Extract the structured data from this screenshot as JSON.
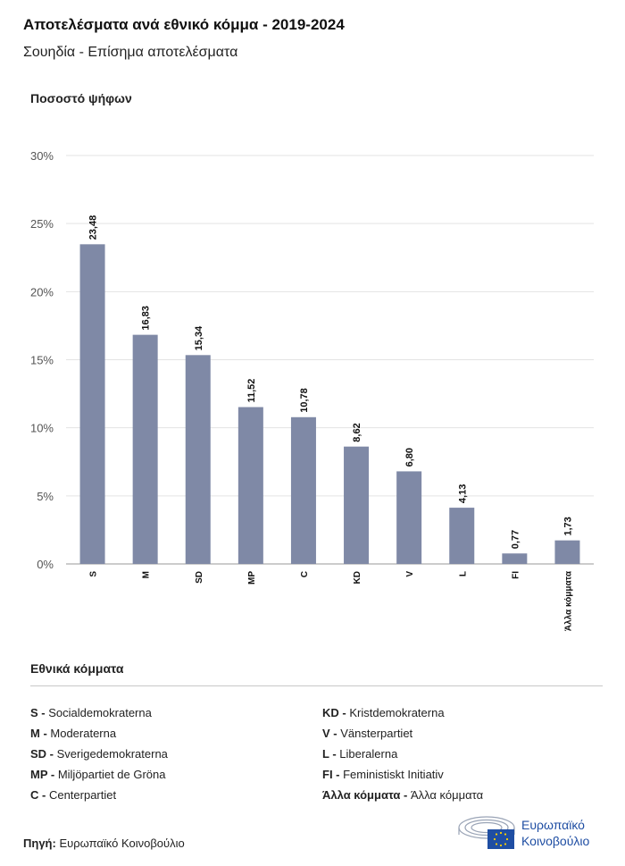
{
  "title": "Αποτελέσματα ανά εθνικό κόμμα - 2019-2024",
  "subtitle": "Σουηδία - Επίσημα αποτελέσματα",
  "chart_data": {
    "type": "bar",
    "title": "Αποτελέσματα ανά εθνικό κόμμα - 2019-2024",
    "subtitle": "Σουηδία - Επίσημα αποτελέσματα",
    "ylabel": "Ποσοστό ψήφων",
    "xlabel": "",
    "categories": [
      "S",
      "M",
      "SD",
      "MP",
      "C",
      "KD",
      "V",
      "L",
      "FI",
      "Άλλα κόμματα"
    ],
    "values": [
      23.48,
      16.83,
      15.34,
      11.52,
      10.78,
      8.62,
      6.8,
      4.13,
      0.77,
      1.73
    ],
    "value_labels": [
      "23,48",
      "16,83",
      "15,34",
      "11,52",
      "10,78",
      "8,62",
      "6,80",
      "4,13",
      "0,77",
      "1,73"
    ],
    "ylim": [
      0,
      30
    ],
    "yticks": [
      0,
      5,
      10,
      15,
      20,
      25,
      30
    ],
    "ytick_labels": [
      "0%",
      "5%",
      "10%",
      "15%",
      "20%",
      "25%",
      "30%"
    ],
    "grid": true,
    "bar_color": "#7f89a6"
  },
  "legend": {
    "title": "Εθνικά κόμματα",
    "left": [
      {
        "abbr": "S - ",
        "name": "Socialdemokraterna"
      },
      {
        "abbr": "M - ",
        "name": "Moderaterna"
      },
      {
        "abbr": "SD - ",
        "name": "Sverigedemokraterna"
      },
      {
        "abbr": "MP - ",
        "name": "Miljöpartiet de Gröna"
      },
      {
        "abbr": "C - ",
        "name": "Centerpartiet"
      }
    ],
    "right": [
      {
        "abbr": "KD - ",
        "name": "Kristdemokraterna"
      },
      {
        "abbr": "V - ",
        "name": "Vänsterpartiet"
      },
      {
        "abbr": "L - ",
        "name": "Liberalerna"
      },
      {
        "abbr": "FI - ",
        "name": "Feministiskt Initiativ"
      },
      {
        "abbr": "Άλλα κόμματα - ",
        "name": "Άλλα κόμματα"
      }
    ]
  },
  "source": {
    "label": "Πηγή:",
    "text": " Ευρωπαϊκό Κοινοβούλιο"
  },
  "logo": {
    "line1": "Ευρωπαϊκό",
    "line2": "Κοινοβούλιο",
    "icon": "european-parliament-logo-icon",
    "color": "#1f4ea3"
  }
}
